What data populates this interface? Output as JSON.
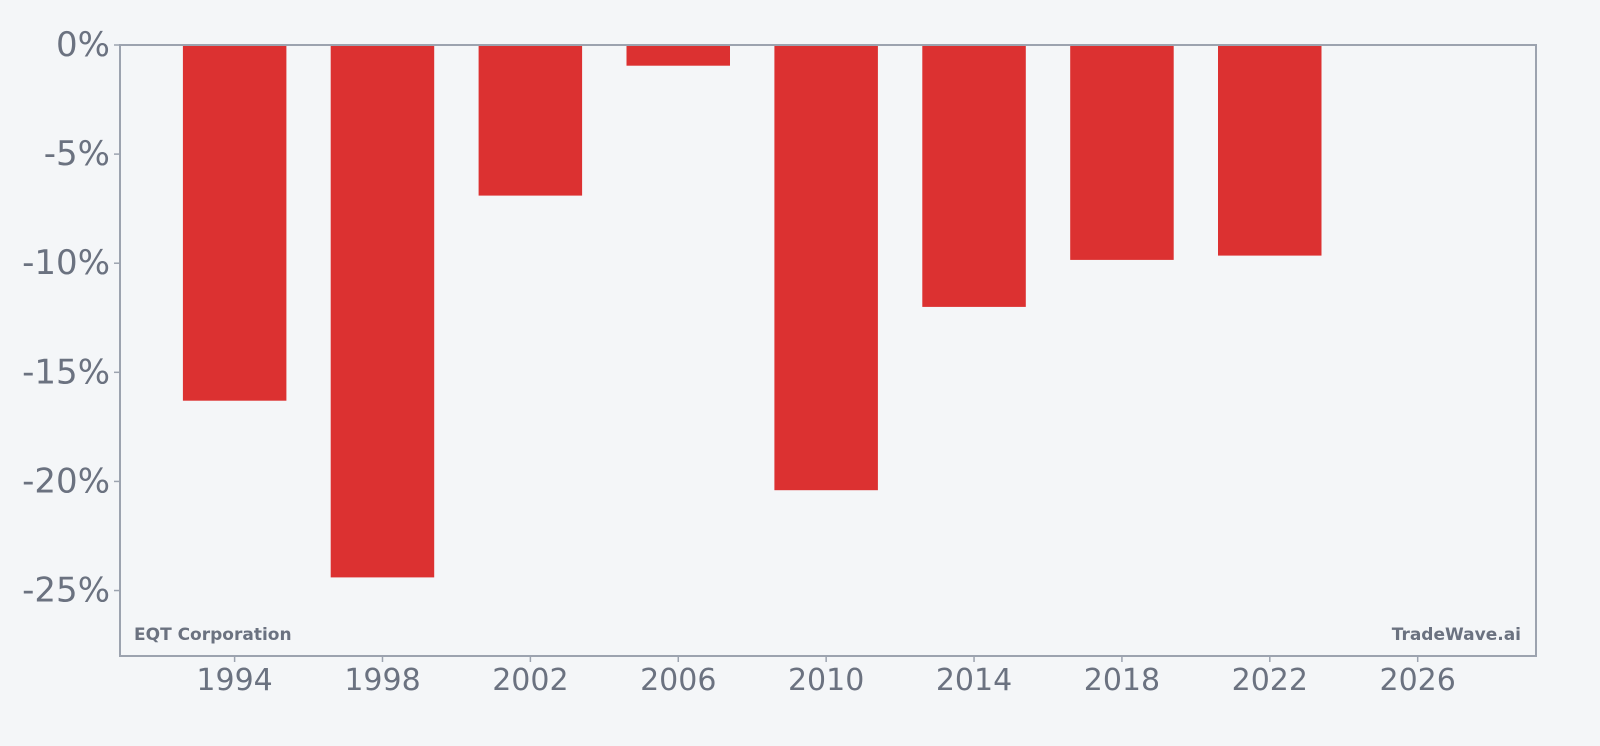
{
  "chart_data": {
    "type": "bar",
    "x": [
      1994,
      1998,
      2002,
      2006,
      2010,
      2014,
      2018,
      2022
    ],
    "values": [
      -16.3,
      -24.4,
      -6.9,
      -0.95,
      -20.4,
      -12.0,
      -9.85,
      -9.65
    ],
    "bar_width_years": 2.8,
    "xlim": [
      1990.9,
      2029.2
    ],
    "ylim": [
      -28,
      0
    ],
    "x_ticks": [
      1994,
      1998,
      2002,
      2006,
      2010,
      2014,
      2018,
      2022,
      2026
    ],
    "x_tick_labels": [
      "1994",
      "1998",
      "2002",
      "2006",
      "2010",
      "2014",
      "2018",
      "2022",
      "2026"
    ],
    "y_ticks": [
      0,
      -5,
      -10,
      -15,
      -20,
      -25
    ],
    "y_tick_labels": [
      "0%",
      "-5%",
      "-10%",
      "-15%",
      "-20%",
      "-25%"
    ],
    "xlabel": "",
    "ylabel": "",
    "grid": false,
    "bar_color": "#dc3131",
    "axis_color": "#9ca3af",
    "text_color": "#6b7280",
    "background": "#f4f6f8"
  },
  "annotations": {
    "company": "EQT Corporation",
    "brand": "TradeWave.ai"
  }
}
